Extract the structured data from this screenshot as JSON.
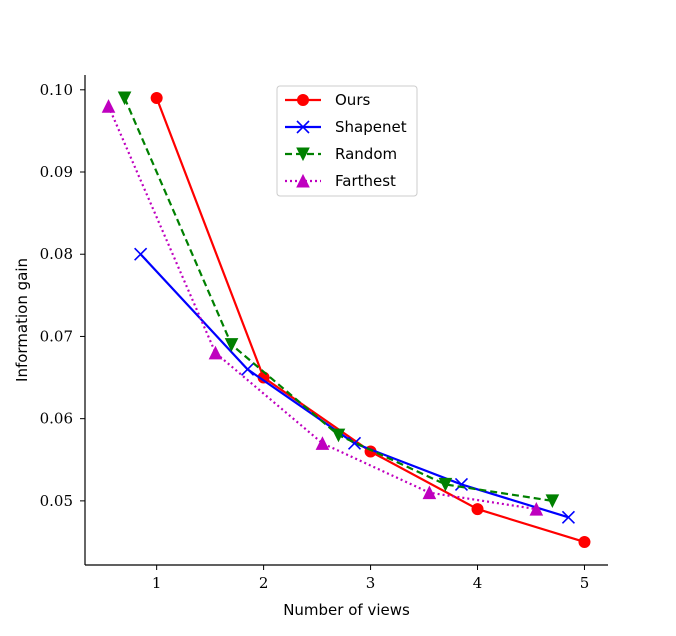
{
  "chart_data": {
    "type": "line",
    "title": "",
    "xlabel": "Number of views",
    "ylabel": "Information gain",
    "xlim": [
      0.33,
      5.22
    ],
    "ylim": [
      0.0422,
      0.1018
    ],
    "xticks": [
      1,
      2,
      3,
      4,
      5
    ],
    "xtick_labels": [
      "1",
      "2",
      "3",
      "4",
      "5"
    ],
    "yticks": [
      0.05,
      0.06,
      0.07,
      0.08,
      0.09,
      0.1
    ],
    "ytick_labels": [
      "0.05",
      "0.06",
      "0.07",
      "0.08",
      "0.09",
      "0.10"
    ],
    "grid": false,
    "legend_position": "top-center",
    "series": [
      {
        "name": "Ours",
        "color": "#ff0000",
        "line_style": "solid",
        "marker": "circle",
        "x": [
          1,
          2,
          3,
          4,
          5
        ],
        "y": [
          0.099,
          0.065,
          0.056,
          0.049,
          0.045
        ]
      },
      {
        "name": "Shapenet",
        "color": "#0000ff",
        "line_style": "solid",
        "marker": "x",
        "x": [
          0.85,
          1.85,
          2.85,
          3.85,
          4.85
        ],
        "y": [
          0.08,
          0.066,
          0.057,
          0.052,
          0.048
        ]
      },
      {
        "name": "Random",
        "color": "#008000",
        "line_style": "dashed",
        "marker": "triangle-down",
        "x": [
          0.7,
          1.7,
          2.7,
          3.7,
          4.7
        ],
        "y": [
          0.099,
          0.069,
          0.058,
          0.052,
          0.05
        ]
      },
      {
        "name": "Farthest",
        "color": "#bf00bf",
        "line_style": "dotted",
        "marker": "triangle-up",
        "x": [
          0.55,
          1.55,
          2.55,
          3.55,
          4.55
        ],
        "y": [
          0.098,
          0.068,
          0.057,
          0.051,
          0.049
        ]
      }
    ]
  }
}
